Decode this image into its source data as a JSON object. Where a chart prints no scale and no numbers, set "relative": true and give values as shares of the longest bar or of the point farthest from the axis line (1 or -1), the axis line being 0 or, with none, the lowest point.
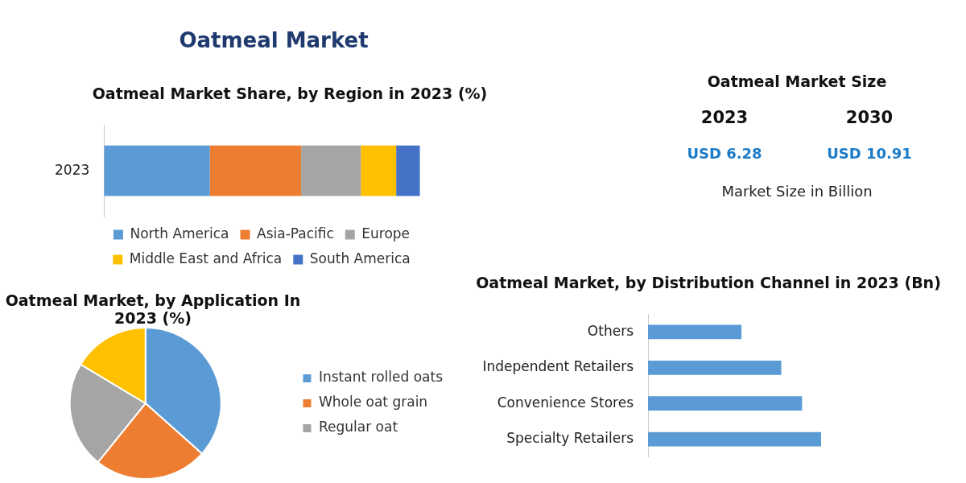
{
  "chart_data": [
    {
      "type": "other",
      "title": "Oatmeal Market"
    },
    {
      "type": "bar",
      "title": "Oatmeal Market Share, by Region in 2023 (%)",
      "orientation": "horizontal",
      "stacked": true,
      "relative": true,
      "categories": [
        "2023"
      ],
      "legend": "bottom",
      "series": [
        {
          "name": "North America",
          "color": "#5b9bd5",
          "values": [
            0.335
          ]
        },
        {
          "name": "Asia-Pacific",
          "color": "#ed7d31",
          "values": [
            0.289
          ]
        },
        {
          "name": "Europe",
          "color": "#a5a5a5",
          "values": [
            0.189
          ]
        },
        {
          "name": "Middle East and Africa",
          "color": "#ffc000",
          "values": [
            0.112
          ]
        },
        {
          "name": "South America",
          "color": "#4472c4",
          "values": [
            0.075
          ]
        }
      ]
    },
    {
      "type": "other",
      "title": "Oatmeal Market Size",
      "annotations": [
        "2023",
        "2030",
        "USD 6.28",
        "USD 10.91",
        "Market Size in Billion"
      ]
    },
    {
      "type": "pie",
      "title": "Oatmeal Market, by Application In 2023 (%)",
      "categories": [
        "Instant rolled oats",
        "Whole oat grain",
        "Regular oat",
        null
      ],
      "values": [
        36.6,
        24.2,
        22.8,
        16.4
      ],
      "colors": [
        "#5b9bd5",
        "#ed7d31",
        "#a5a5a5",
        "#ffc000"
      ],
      "legend": "right"
    },
    {
      "type": "bar",
      "title": "Oatmeal Market, by Distribution Channel in 2023 (Bn)",
      "orientation": "horizontal",
      "relative": true,
      "categories": [
        "Others",
        "Independent Retailers",
        "Convenience Stores",
        "Specialty Retailers"
      ],
      "values": [
        0.54,
        0.77,
        0.89,
        1
      ],
      "color": "#5b9bd5"
    }
  ]
}
